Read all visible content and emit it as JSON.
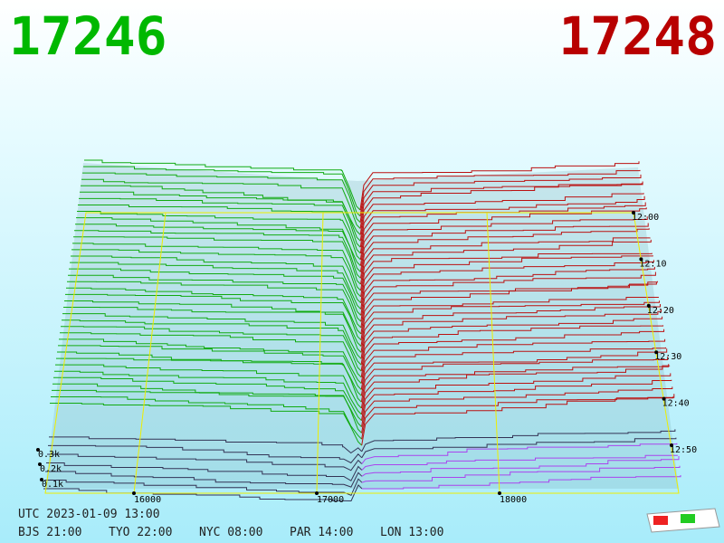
{
  "header": {
    "bid": "17246",
    "ask": "17248"
  },
  "price_axis": [
    "16000",
    "17000",
    "18000"
  ],
  "depth_axis": [
    "0.3k",
    "0.2k",
    "0.1k"
  ],
  "time_axis": [
    "12:00",
    "12:10",
    "12:20",
    "12:30",
    "12:40",
    "12:50"
  ],
  "footer": {
    "utc": "UTC 2023-01-09 13:00",
    "clocks": [
      "BJS 21:00",
      "TYO 22:00",
      "NYC 08:00",
      "PAR 14:00",
      "LON 13:00"
    ]
  }
}
